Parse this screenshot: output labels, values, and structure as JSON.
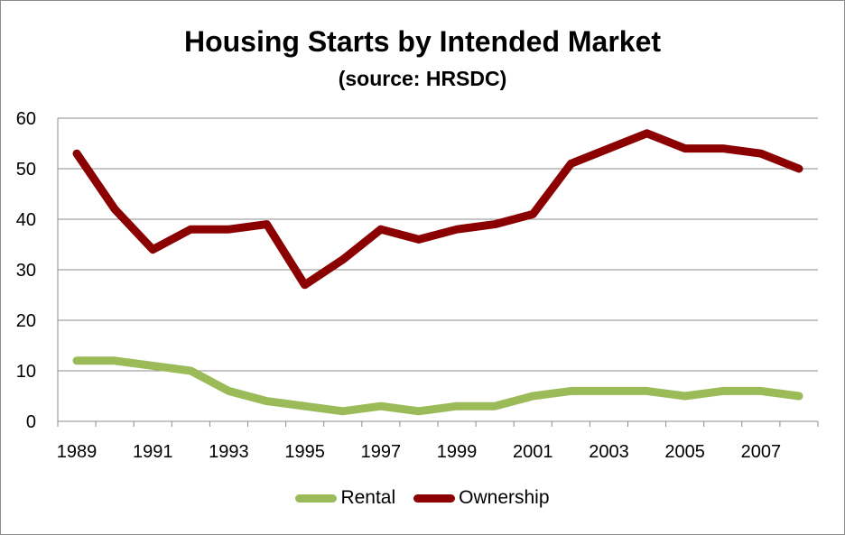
{
  "chart_data": {
    "type": "line",
    "title": "Housing Starts by Intended Market",
    "subtitle": "(source: HRSDC)",
    "xlabel": "",
    "ylabel": "",
    "x": [
      1989,
      1990,
      1991,
      1992,
      1993,
      1994,
      1995,
      1996,
      1997,
      1998,
      1999,
      2000,
      2001,
      2002,
      2003,
      2004,
      2005,
      2006,
      2007,
      2008
    ],
    "x_tick_labels": [
      "1989",
      "1991",
      "1993",
      "1995",
      "1997",
      "1999",
      "2001",
      "2003",
      "2005",
      "2007"
    ],
    "y_tick_labels": [
      "0",
      "10",
      "20",
      "30",
      "40",
      "50",
      "60"
    ],
    "ylim": [
      0,
      60
    ],
    "grid": true,
    "legend_position": "bottom",
    "series": [
      {
        "name": "Rental",
        "color": "#9bbb59",
        "values": [
          12,
          12,
          11,
          10,
          6,
          4,
          3,
          2,
          3,
          2,
          3,
          3,
          5,
          6,
          6,
          6,
          5,
          6,
          6,
          5
        ]
      },
      {
        "name": "Ownership",
        "color": "#8b0000",
        "values": [
          53,
          42,
          34,
          38,
          38,
          39,
          27,
          32,
          38,
          36,
          38,
          39,
          41,
          51,
          54,
          57,
          54,
          54,
          53,
          50
        ]
      }
    ]
  }
}
